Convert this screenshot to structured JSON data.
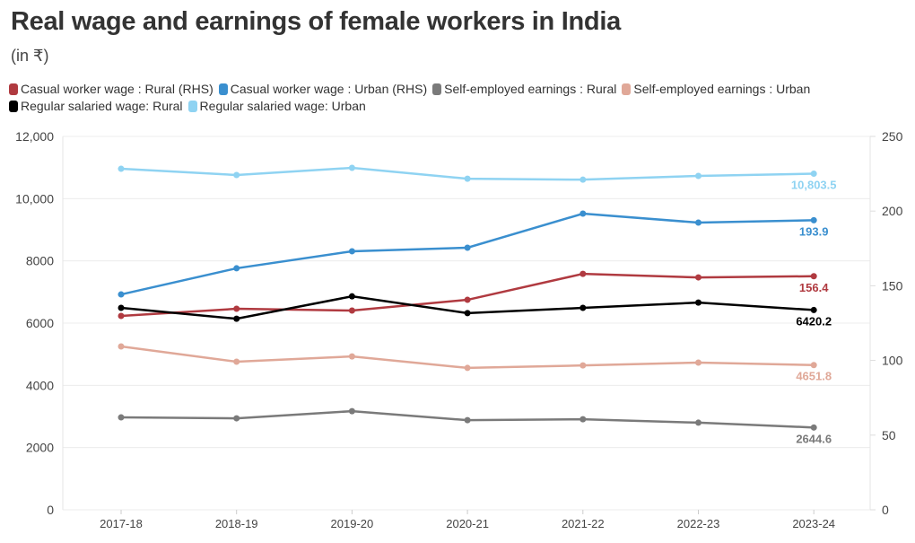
{
  "title": "Real wage and earnings of female workers in India",
  "subtitle": "(in ₹)",
  "chart_data": {
    "type": "line",
    "title": "Real wage and earnings of female workers in India",
    "subtitle": "(in ₹)",
    "categories": [
      "2017-18",
      "2018-19",
      "2019-20",
      "2020-21",
      "2021-22",
      "2022-23",
      "2023-24"
    ],
    "left_axis": {
      "ylim": [
        0,
        12000
      ],
      "ticks": [
        "0",
        "2000",
        "4000",
        "6000",
        "8000",
        "10,000",
        "12,000"
      ],
      "tick_values": [
        0,
        2000,
        4000,
        6000,
        8000,
        10000,
        12000
      ]
    },
    "right_axis": {
      "ylim": [
        0,
        250
      ],
      "ticks": [
        "0",
        "50",
        "100",
        "150",
        "200",
        "250"
      ],
      "tick_values": [
        0,
        50,
        100,
        150,
        200,
        250
      ]
    },
    "grid": true,
    "legend_placement": "top",
    "series": [
      {
        "name": "Casual worker wage : Rural (RHS)",
        "axis": "right",
        "color": "#b03a40",
        "values": [
          129.8,
          134.6,
          133.4,
          140.6,
          158.0,
          155.6,
          156.4
        ],
        "end_label": "156.4"
      },
      {
        "name": "Casual worker wage : Urban (RHS)",
        "axis": "right",
        "color": "#3a8fcf",
        "values": [
          144.2,
          161.7,
          173.1,
          175.5,
          198.3,
          192.3,
          193.9
        ],
        "end_label": "193.9"
      },
      {
        "name": "Self-employed earnings : Rural",
        "axis": "left",
        "color": "#7a7a7a",
        "values": [
          2970,
          2940,
          3170,
          2880,
          2910,
          2800,
          2644.6
        ],
        "end_label": "2644.6"
      },
      {
        "name": "Self-employed earnings : Urban",
        "axis": "left",
        "color": "#e0a898",
        "values": [
          5250,
          4760,
          4930,
          4560,
          4640,
          4730,
          4651.8
        ],
        "end_label": "4651.8"
      },
      {
        "name": "Regular salaried wage: Rural",
        "axis": "left",
        "color": "#000000",
        "values": [
          6490,
          6140,
          6860,
          6320,
          6490,
          6660,
          6420.2
        ],
        "end_label": "6420.2"
      },
      {
        "name": "Regular salaried wage: Urban",
        "axis": "left",
        "color": "#8fd3f2",
        "values": [
          10960,
          10760,
          10990,
          10640,
          10610,
          10730,
          10803.5
        ],
        "end_label": "10,803.5"
      }
    ]
  }
}
